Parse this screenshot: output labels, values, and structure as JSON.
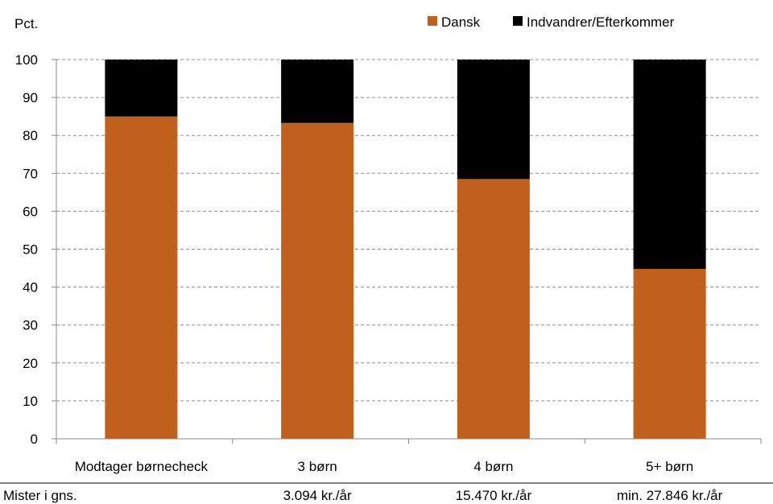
{
  "chart_data": {
    "type": "bar",
    "stacked": true,
    "ylabel": "Pct.",
    "ylim": [
      0,
      100
    ],
    "yticks": [
      0,
      10,
      20,
      30,
      40,
      50,
      60,
      70,
      80,
      90,
      100
    ],
    "grid": true,
    "legend_position": "top-right",
    "categories": [
      "Modtager børnecheck",
      "3 børn",
      "4 børn",
      "5+ børn"
    ],
    "series": [
      {
        "name": "Dansk",
        "color": "#C0601C",
        "values": [
          85,
          83.3,
          68.5,
          44.8
        ]
      },
      {
        "name": "Indvandrer/Efterkommer",
        "color": "#000000",
        "values": [
          15,
          16.7,
          31.5,
          55.2
        ]
      }
    ],
    "footer": {
      "label": "Mister i gns.",
      "values": [
        "",
        "3.094 kr./år",
        "15.470 kr./år",
        "min. 27.846 kr./år"
      ]
    }
  }
}
